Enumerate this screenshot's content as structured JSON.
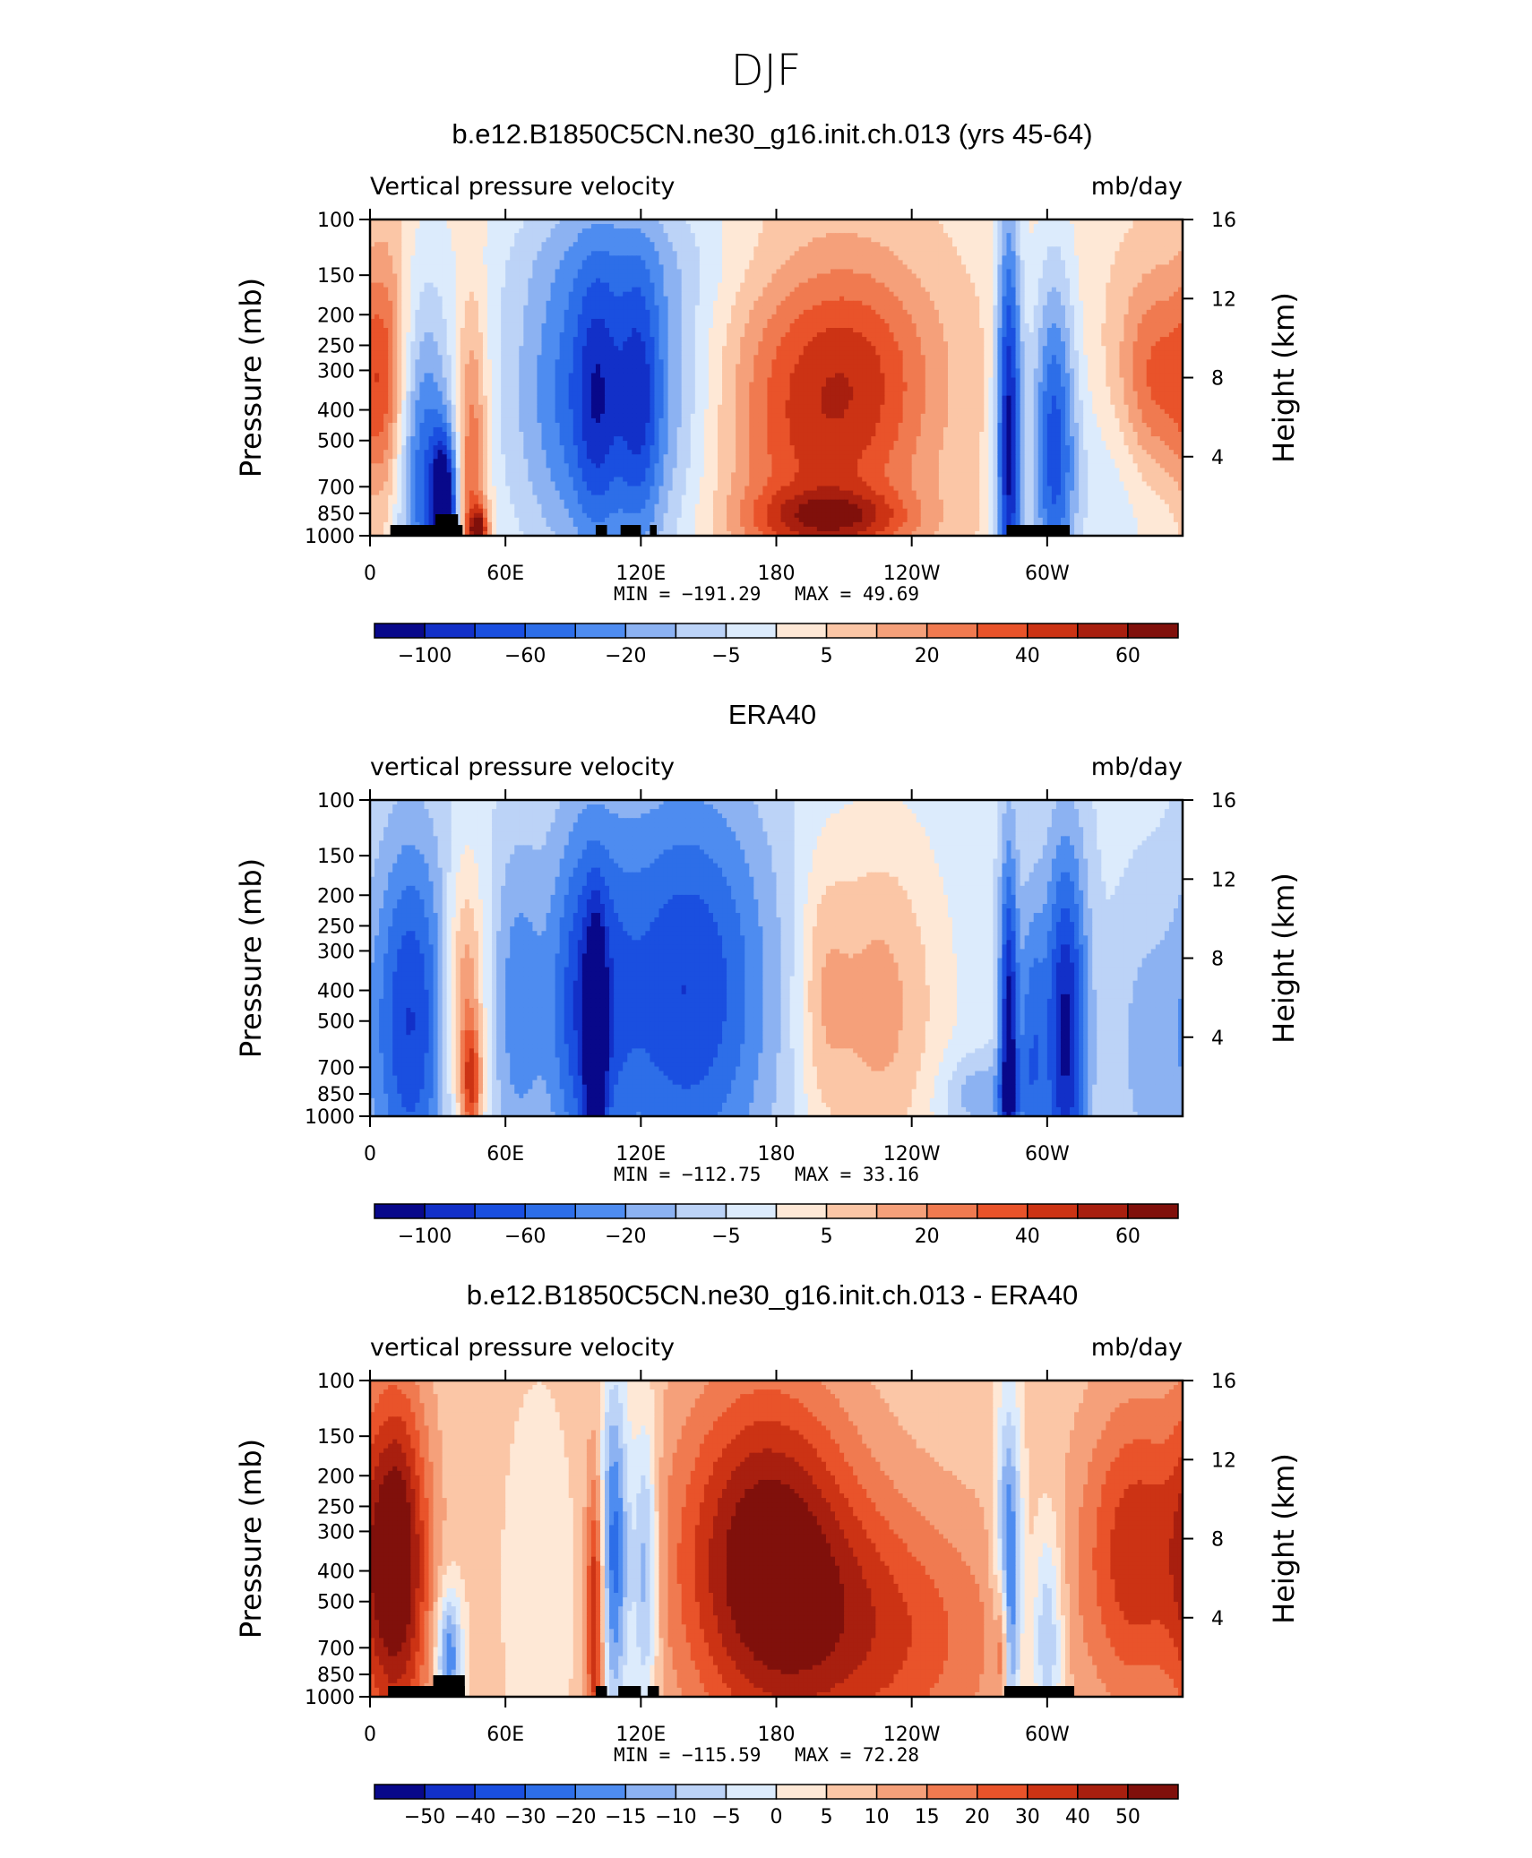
{
  "figure": {
    "title": "DJF"
  },
  "palette": [
    "#08088a",
    "#1230c8",
    "#1a4fe0",
    "#2d6ee8",
    "#4e8cf0",
    "#8cb2f2",
    "#bcd3f7",
    "#dcebfc",
    "#fee8d6",
    "#fbc6a6",
    "#f5a07a",
    "#f07a50",
    "#e9532a",
    "#cc3314",
    "#a81f0f",
    "#80100b"
  ],
  "shared": {
    "y_label": "Pressure (mb)",
    "y2_label": "Height (km)",
    "units": "mb/day",
    "y_ticks": [
      "100",
      "150",
      "200",
      "250",
      "300",
      "400",
      "500",
      "700",
      "850",
      "1000"
    ],
    "y_tick_values": [
      100,
      150,
      200,
      250,
      300,
      400,
      500,
      700,
      850,
      1000
    ],
    "y2_ticks": [
      "16",
      "12",
      "8",
      "4"
    ],
    "y2_tick_values": [
      16,
      12,
      8,
      4
    ],
    "x_ticks": [
      "0",
      "60E",
      "120E",
      "180",
      "120W",
      "60W"
    ],
    "x_tick_values": [
      0,
      60,
      120,
      180,
      240,
      300
    ]
  },
  "chart_data": [
    {
      "type": "heatmap",
      "title": "b.e12.B1850C5CN.ne30_g16.init.ch.013 (yrs 45-64)",
      "left_label": "Vertical pressure velocity",
      "right_label": "mb/day",
      "xlim": [
        0,
        360
      ],
      "ylim": [
        1000,
        100
      ],
      "y_scale": "log",
      "min_text": "MIN = −191.29",
      "max_text": "MAX =   49.69",
      "colorbar_ticks": [
        "−100",
        "−60",
        "−20",
        "−5",
        "5",
        "20",
        "40",
        "60"
      ],
      "colorbar_tick_bins": [
        1,
        3,
        5,
        7,
        9,
        11,
        13,
        15
      ],
      "features": [
        {
          "lon": 8,
          "p": 380,
          "wlon": 8,
          "wp": 0.8,
          "v": 1.0
        },
        {
          "lon": 22,
          "p": 600,
          "wlon": 10,
          "wp": 0.9,
          "v": -1.2
        },
        {
          "lon": 33,
          "p": 800,
          "wlon": 4,
          "wp": 0.35,
          "v": -1.8
        },
        {
          "lon": 45,
          "p": 700,
          "wlon": 5,
          "wp": 0.9,
          "v": 1.0
        },
        {
          "lon": 48,
          "p": 950,
          "wlon": 3,
          "wp": 0.1,
          "v": 1.2
        },
        {
          "lon": 105,
          "p": 350,
          "wlon": 30,
          "wp": 1.0,
          "v": -1.4
        },
        {
          "lon": 120,
          "p": 380,
          "wlon": 6,
          "wp": 0.7,
          "v": -0.5
        },
        {
          "lon": 100,
          "p": 380,
          "wlon": 6,
          "wp": 0.7,
          "v": -0.4
        },
        {
          "lon": 195,
          "p": 450,
          "wlon": 32,
          "wp": 0.9,
          "v": 0.9
        },
        {
          "lon": 220,
          "p": 300,
          "wlon": 25,
          "wp": 0.6,
          "v": 0.5
        },
        {
          "lon": 205,
          "p": 880,
          "wlon": 25,
          "wp": 0.15,
          "v": 0.9
        },
        {
          "lon": 283,
          "p": 500,
          "wlon": 4,
          "wp": 1.2,
          "v": -1.8
        },
        {
          "lon": 303,
          "p": 500,
          "wlon": 7,
          "wp": 0.9,
          "v": -1.3
        },
        {
          "lon": 348,
          "p": 350,
          "wlon": 12,
          "wp": 0.6,
          "v": 0.9
        },
        {
          "lon": 340,
          "p": 700,
          "wlon": 25,
          "wp": 0.5,
          "v": -0.4
        },
        {
          "lon": 130,
          "p": 130,
          "wlon": 60,
          "wp": 0.3,
          "v": -0.15
        }
      ],
      "base_value": 0.15,
      "land_bars": [
        [
          9,
          41,
          1
        ],
        [
          29,
          39,
          2
        ],
        [
          100,
          105,
          1
        ],
        [
          111,
          120,
          1
        ],
        [
          124,
          127,
          1
        ],
        [
          282,
          310,
          1
        ]
      ]
    },
    {
      "type": "heatmap",
      "title": "ERA40",
      "left_label": "vertical pressure velocity",
      "right_label": "mb/day",
      "xlim": [
        0,
        360
      ],
      "ylim": [
        1000,
        100
      ],
      "y_scale": "log",
      "min_text": "MIN = −112.75",
      "max_text": "MAX =   33.16",
      "colorbar_ticks": [
        "−100",
        "−60",
        "−20",
        "−5",
        "5",
        "20",
        "40",
        "60"
      ],
      "colorbar_tick_bins": [
        1,
        3,
        5,
        7,
        9,
        11,
        13,
        15
      ],
      "features": [
        {
          "lon": 18,
          "p": 500,
          "wlon": 12,
          "wp": 1.0,
          "v": -1.2
        },
        {
          "lon": 42,
          "p": 450,
          "wlon": 6,
          "wp": 0.7,
          "v": 0.9
        },
        {
          "lon": 45,
          "p": 800,
          "wlon": 3,
          "wp": 0.3,
          "v": 1.0
        },
        {
          "lon": 65,
          "p": 450,
          "wlon": 8,
          "wp": 0.9,
          "v": -0.6
        },
        {
          "lon": 95,
          "p": 450,
          "wlon": 12,
          "wp": 1.0,
          "v": -1.0
        },
        {
          "lon": 100,
          "p": 600,
          "wlon": 3,
          "wp": 0.6,
          "v": -1.3
        },
        {
          "lon": 140,
          "p": 400,
          "wlon": 28,
          "wp": 1.1,
          "v": -1.2
        },
        {
          "lon": 225,
          "p": 450,
          "wlon": 20,
          "wp": 0.9,
          "v": 0.7
        },
        {
          "lon": 200,
          "p": 400,
          "wlon": 8,
          "wp": 0.7,
          "v": 0.4
        },
        {
          "lon": 270,
          "p": 850,
          "wlon": 12,
          "wp": 0.2,
          "v": -0.5
        },
        {
          "lon": 283,
          "p": 600,
          "wlon": 3,
          "wp": 1.0,
          "v": -1.6
        },
        {
          "lon": 293,
          "p": 600,
          "wlon": 4,
          "wp": 0.8,
          "v": -0.8
        },
        {
          "lon": 308,
          "p": 550,
          "wlon": 7,
          "wp": 1.0,
          "v": -1.5
        },
        {
          "lon": 345,
          "p": 600,
          "wlon": 12,
          "wp": 0.8,
          "v": -0.4
        }
      ],
      "base_value": -0.15,
      "land_bars": []
    },
    {
      "type": "heatmap",
      "title": "b.e12.B1850C5CN.ne30_g16.init.ch.013 - ERA40",
      "left_label": "vertical pressure velocity",
      "right_label": "mb/day",
      "xlim": [
        0,
        360
      ],
      "ylim": [
        1000,
        100
      ],
      "y_scale": "log",
      "min_text": "MIN = −115.59",
      "max_text": "MAX =   72.28",
      "colorbar_ticks": [
        "−50",
        "−40",
        "−30",
        "−20",
        "−15",
        "−10",
        "−5",
        "0",
        "5",
        "10",
        "15",
        "20",
        "30",
        "40",
        "50"
      ],
      "colorbar_tick_bins": [
        1,
        2,
        3,
        4,
        5,
        6,
        7,
        8,
        9,
        10,
        11,
        12,
        13,
        14,
        15
      ],
      "features": [
        {
          "lon": 12,
          "p": 380,
          "wlon": 10,
          "wp": 0.9,
          "v": 1.5
        },
        {
          "lon": 35,
          "p": 750,
          "wlon": 4,
          "wp": 0.35,
          "v": -1.2
        },
        {
          "lon": 100,
          "p": 550,
          "wlon": 3,
          "wp": 0.8,
          "v": 1.3
        },
        {
          "lon": 108,
          "p": 350,
          "wlon": 5,
          "wp": 0.9,
          "v": -1.4
        },
        {
          "lon": 122,
          "p": 400,
          "wlon": 4,
          "wp": 0.8,
          "v": -1.0
        },
        {
          "lon": 175,
          "p": 350,
          "wlon": 28,
          "wp": 0.9,
          "v": 1.4
        },
        {
          "lon": 225,
          "p": 650,
          "wlon": 40,
          "wp": 0.7,
          "v": 0.8
        },
        {
          "lon": 283,
          "p": 450,
          "wlon": 4,
          "wp": 0.9,
          "v": -1.5
        },
        {
          "lon": 280,
          "p": 700,
          "wlon": 2,
          "wp": 0.4,
          "v": 1.0
        },
        {
          "lon": 300,
          "p": 650,
          "wlon": 5,
          "wp": 0.6,
          "v": -0.9
        },
        {
          "lon": 340,
          "p": 350,
          "wlon": 18,
          "wp": 0.8,
          "v": 1.0
        },
        {
          "lon": 75,
          "p": 450,
          "wlon": 10,
          "wp": 0.9,
          "v": -0.3
        }
      ],
      "base_value": 0.3,
      "land_bars": [
        [
          8,
          42,
          1
        ],
        [
          28,
          42,
          2
        ],
        [
          100,
          105,
          1
        ],
        [
          110,
          120,
          1
        ],
        [
          123,
          128,
          1
        ],
        [
          281,
          312,
          1
        ]
      ]
    }
  ]
}
